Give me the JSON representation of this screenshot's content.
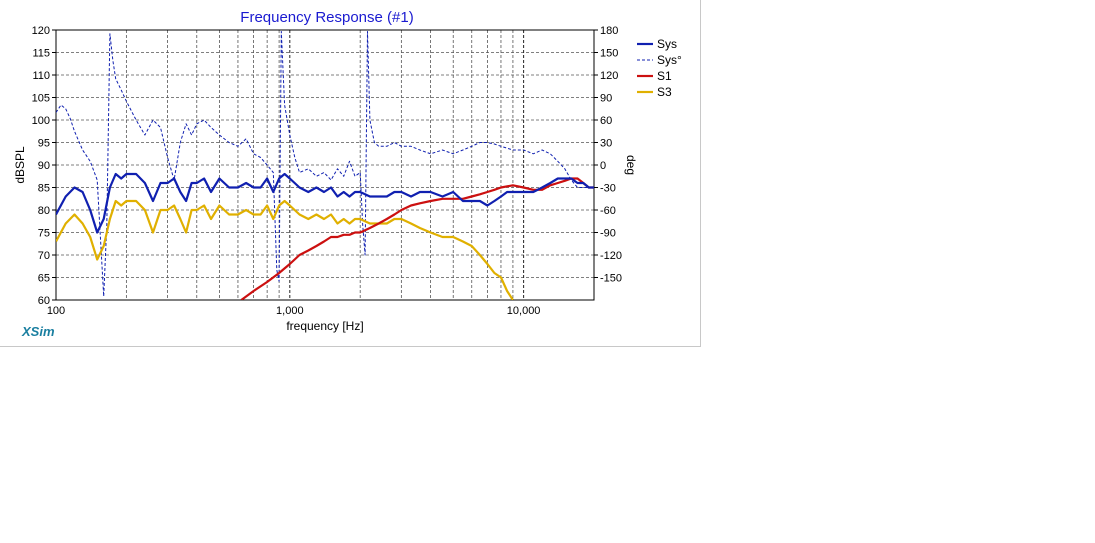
{
  "chart_data": {
    "type": "line",
    "title": "Frequency Response (#1)",
    "xlabel": "frequency [Hz]",
    "ylabel": "dBSPL",
    "y2label": "deg",
    "xscale": "log",
    "xlim": [
      100,
      20000
    ],
    "ylim": [
      60,
      120
    ],
    "y2lim": [
      -180,
      180
    ],
    "xticks": [
      100,
      1000,
      10000
    ],
    "xtick_labels": [
      "100",
      "1,000",
      "10,000"
    ],
    "yticks": [
      60,
      65,
      70,
      75,
      80,
      85,
      90,
      95,
      100,
      105,
      110,
      115,
      120
    ],
    "y2ticks": [
      -150,
      -120,
      -90,
      -60,
      -30,
      0,
      30,
      60,
      90,
      120,
      150,
      180
    ],
    "grid": true,
    "legend_position": "right",
    "series": [
      {
        "name": "Sys",
        "color": "#1020b0",
        "style": "solid-thick",
        "axis": "left",
        "x": [
          100,
          110,
          120,
          130,
          140,
          150,
          160,
          170,
          180,
          190,
          200,
          220,
          240,
          260,
          280,
          300,
          320,
          340,
          360,
          380,
          400,
          430,
          460,
          500,
          550,
          600,
          650,
          700,
          750,
          800,
          850,
          900,
          950,
          1000,
          1100,
          1200,
          1300,
          1400,
          1500,
          1600,
          1700,
          1800,
          1900,
          2000,
          2200,
          2400,
          2600,
          2800,
          3000,
          3300,
          3600,
          4000,
          4500,
          5000,
          5500,
          6000,
          6500,
          7000,
          7500,
          8000,
          8500,
          9000,
          10000,
          11000,
          12000,
          13000,
          14000,
          15000,
          16000,
          17000,
          18000,
          19000,
          20000
        ],
        "values": [
          79,
          83,
          85,
          84,
          80,
          75,
          78,
          85,
          88,
          87,
          88,
          88,
          86,
          82,
          86,
          86,
          87,
          84,
          82,
          86,
          86,
          87,
          84,
          87,
          85,
          85,
          86,
          85,
          85,
          87,
          84,
          87,
          88,
          87,
          85,
          84,
          85,
          84,
          85,
          83,
          84,
          83,
          84,
          84,
          83,
          83,
          83,
          84,
          84,
          83,
          84,
          84,
          83,
          84,
          82,
          82,
          82,
          81,
          82,
          83,
          84,
          84,
          84,
          84,
          85,
          86,
          87,
          87,
          87,
          86,
          86,
          85,
          85
        ]
      },
      {
        "name": "Sys°",
        "color": "#1020b0",
        "style": "dashed-thin",
        "axis": "right",
        "x": [
          100,
          105,
          110,
          115,
          120,
          130,
          140,
          150,
          160,
          165,
          170,
          175,
          180,
          190,
          200,
          220,
          240,
          260,
          280,
          300,
          320,
          340,
          360,
          380,
          400,
          430,
          460,
          500,
          550,
          600,
          650,
          700,
          750,
          800,
          850,
          880,
          900,
          920,
          950,
          1000,
          1050,
          1100,
          1200,
          1300,
          1400,
          1500,
          1600,
          1700,
          1800,
          1900,
          2000,
          2050,
          2100,
          2150,
          2200,
          2300,
          2400,
          2600,
          2800,
          3000,
          3300,
          3600,
          4000,
          4500,
          5000,
          5500,
          6000,
          6500,
          7000,
          7500,
          8000,
          9000,
          10000,
          11000,
          12000,
          13000,
          14000,
          15000,
          16000,
          17000,
          18000,
          19000,
          20000
        ],
        "values": [
          70,
          80,
          75,
          62,
          45,
          20,
          5,
          -20,
          -175,
          -80,
          175,
          140,
          115,
          100,
          85,
          60,
          40,
          60,
          50,
          10,
          -20,
          30,
          55,
          40,
          55,
          60,
          50,
          40,
          30,
          25,
          35,
          15,
          10,
          0,
          -10,
          -140,
          -155,
          178,
          80,
          40,
          10,
          -10,
          -5,
          -15,
          -10,
          -20,
          -5,
          -15,
          5,
          -15,
          -10,
          -80,
          -120,
          178,
          60,
          30,
          25,
          25,
          30,
          25,
          25,
          20,
          15,
          20,
          15,
          20,
          25,
          30,
          30,
          28,
          25,
          20,
          20,
          15,
          20,
          15,
          5,
          -5,
          -20,
          -30,
          -30,
          -30,
          -30
        ]
      },
      {
        "name": "S1",
        "color": "#cc1010",
        "style": "solid-thick",
        "axis": "left",
        "x": [
          620,
          700,
          800,
          900,
          1000,
          1100,
          1200,
          1300,
          1400,
          1500,
          1600,
          1700,
          1800,
          1900,
          2000,
          2200,
          2400,
          2600,
          2800,
          3000,
          3300,
          3600,
          4000,
          4500,
          5000,
          5500,
          6000,
          6500,
          7000,
          7500,
          8000,
          9000,
          10000,
          11000,
          12000,
          13000,
          14000,
          15000,
          16000,
          17000,
          18000,
          19000,
          20000
        ],
        "values": [
          60,
          62,
          64,
          66,
          68,
          70,
          71,
          72,
          73,
          74,
          74,
          74.5,
          74.5,
          75,
          75,
          76,
          77,
          78,
          79,
          80,
          81,
          81.5,
          82,
          82.5,
          82.5,
          82.5,
          83,
          83.5,
          84,
          84.5,
          85,
          85.5,
          85,
          84.5,
          84.5,
          85.5,
          86,
          86.5,
          87,
          87,
          86,
          85,
          85
        ]
      },
      {
        "name": "S3",
        "color": "#e0b000",
        "style": "solid-thick",
        "axis": "left",
        "x": [
          100,
          110,
          120,
          130,
          140,
          150,
          160,
          170,
          180,
          190,
          200,
          220,
          240,
          260,
          280,
          300,
          320,
          340,
          360,
          380,
          400,
          430,
          460,
          500,
          550,
          600,
          650,
          700,
          750,
          800,
          850,
          900,
          950,
          1000,
          1100,
          1200,
          1300,
          1400,
          1500,
          1600,
          1700,
          1800,
          1900,
          2000,
          2200,
          2400,
          2600,
          2800,
          3000,
          3300,
          3600,
          4000,
          4500,
          5000,
          5500,
          6000,
          6500,
          7000,
          7500,
          8000,
          8500,
          9000
        ],
        "values": [
          73,
          77,
          79,
          77,
          74,
          69,
          72,
          78,
          82,
          81,
          82,
          82,
          80,
          75,
          80,
          80,
          81,
          78,
          75,
          80,
          80,
          81,
          78,
          81,
          79,
          79,
          80,
          79,
          79,
          81,
          78,
          81,
          82,
          81,
          79,
          78,
          79,
          78,
          79,
          77,
          78,
          77,
          78,
          78,
          77,
          77,
          77,
          78,
          78,
          77,
          76,
          75,
          74,
          74,
          73,
          72,
          70,
          68,
          66,
          65,
          62,
          60
        ]
      }
    ]
  }
}
